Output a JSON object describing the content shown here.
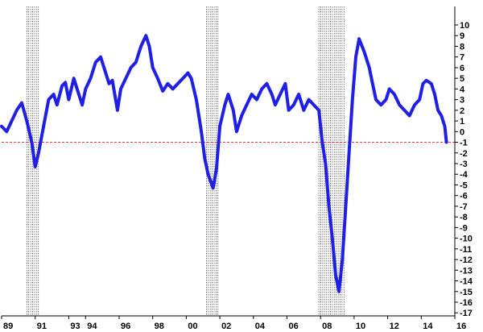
{
  "chart_data": {
    "type": "line",
    "title": "",
    "xlabel": "",
    "ylabel": "",
    "xlim": [
      1989.0,
      2016.0
    ],
    "ylim": [
      -17,
      11
    ],
    "x_ticks": [
      {
        "x": 1989.0,
        "label": "89"
      },
      {
        "x": 1991.0,
        "label": "91"
      },
      {
        "x": 1993.0,
        "label": "93"
      },
      {
        "x": 1994.0,
        "label": "94"
      },
      {
        "x": 1996.0,
        "label": "96"
      },
      {
        "x": 1998.0,
        "label": "98"
      },
      {
        "x": 2000.0,
        "label": "00"
      },
      {
        "x": 2002.0,
        "label": "02"
      },
      {
        "x": 2004.0,
        "label": "04"
      },
      {
        "x": 2006.0,
        "label": "06"
      },
      {
        "x": 2008.0,
        "label": "08"
      },
      {
        "x": 2010.0,
        "label": "10"
      },
      {
        "x": 2012.0,
        "label": "12"
      },
      {
        "x": 2014.0,
        "label": "14"
      },
      {
        "x": 2016.0,
        "label": "16"
      }
    ],
    "y_ticks": [
      10,
      9,
      8,
      7,
      6,
      5,
      4,
      3,
      2,
      1,
      0,
      -1,
      -2,
      -3,
      -4,
      -5,
      -6,
      -7,
      -8,
      -9,
      -10,
      -11,
      -12,
      -13,
      -14,
      -15,
      -16,
      -17
    ],
    "reference_line": {
      "y": -1,
      "style": "dashed",
      "color": "#e8383d"
    },
    "recession_bands": [
      {
        "start": 1990.5,
        "end": 1991.2
      },
      {
        "start": 2001.2,
        "end": 2001.9
      },
      {
        "start": 2007.9,
        "end": 2009.5
      }
    ],
    "series": [
      {
        "color": "#1f1fe6",
        "points": [
          [
            1989.0,
            0.5
          ],
          [
            1989.3,
            0.0
          ],
          [
            1989.6,
            1.0
          ],
          [
            1989.9,
            2.0
          ],
          [
            1990.2,
            2.7
          ],
          [
            1990.5,
            1.0
          ],
          [
            1990.8,
            -1.0
          ],
          [
            1991.0,
            -3.3
          ],
          [
            1991.2,
            -2.0
          ],
          [
            1991.5,
            0.5
          ],
          [
            1991.8,
            3.0
          ],
          [
            1992.1,
            3.5
          ],
          [
            1992.3,
            2.5
          ],
          [
            1992.6,
            4.3
          ],
          [
            1992.8,
            4.6
          ],
          [
            1993.0,
            3.0
          ],
          [
            1993.3,
            5.0
          ],
          [
            1993.5,
            4.0
          ],
          [
            1993.8,
            2.5
          ],
          [
            1994.0,
            4.0
          ],
          [
            1994.3,
            5.0
          ],
          [
            1994.6,
            6.5
          ],
          [
            1994.9,
            7.0
          ],
          [
            1995.2,
            5.5
          ],
          [
            1995.4,
            4.5
          ],
          [
            1995.6,
            4.8
          ],
          [
            1995.9,
            2.0
          ],
          [
            1996.1,
            4.0
          ],
          [
            1996.4,
            5.0
          ],
          [
            1996.7,
            6.0
          ],
          [
            1997.0,
            6.5
          ],
          [
            1997.3,
            8.0
          ],
          [
            1997.6,
            9.0
          ],
          [
            1997.8,
            8.0
          ],
          [
            1998.0,
            6.0
          ],
          [
            1998.3,
            5.0
          ],
          [
            1998.6,
            3.8
          ],
          [
            1998.9,
            4.5
          ],
          [
            1999.2,
            4.0
          ],
          [
            1999.5,
            4.5
          ],
          [
            1999.8,
            5.0
          ],
          [
            2000.1,
            5.5
          ],
          [
            2000.3,
            5.0
          ],
          [
            2000.6,
            3.0
          ],
          [
            2000.9,
            0.0
          ],
          [
            2001.1,
            -2.5
          ],
          [
            2001.3,
            -4.0
          ],
          [
            2001.6,
            -5.3
          ],
          [
            2001.8,
            -3.5
          ],
          [
            2002.0,
            0.5
          ],
          [
            2002.3,
            2.5
          ],
          [
            2002.5,
            3.5
          ],
          [
            2002.8,
            2.0
          ],
          [
            2003.0,
            0.0
          ],
          [
            2003.3,
            1.5
          ],
          [
            2003.6,
            2.5
          ],
          [
            2003.9,
            3.5
          ],
          [
            2004.2,
            3.0
          ],
          [
            2004.5,
            4.0
          ],
          [
            2004.8,
            4.5
          ],
          [
            2005.1,
            3.5
          ],
          [
            2005.3,
            2.5
          ],
          [
            2005.6,
            3.5
          ],
          [
            2005.9,
            4.5
          ],
          [
            2006.1,
            2.0
          ],
          [
            2006.4,
            2.5
          ],
          [
            2006.7,
            3.5
          ],
          [
            2007.0,
            2.0
          ],
          [
            2007.3,
            3.0
          ],
          [
            2007.6,
            2.5
          ],
          [
            2007.9,
            2.0
          ],
          [
            2008.1,
            -1.0
          ],
          [
            2008.3,
            -3.0
          ],
          [
            2008.5,
            -7.0
          ],
          [
            2008.7,
            -10.0
          ],
          [
            2008.9,
            -13.5
          ],
          [
            2009.1,
            -15.0
          ],
          [
            2009.3,
            -12.0
          ],
          [
            2009.5,
            -7.0
          ],
          [
            2009.7,
            -2.0
          ],
          [
            2009.9,
            3.0
          ],
          [
            2010.1,
            7.0
          ],
          [
            2010.3,
            8.7
          ],
          [
            2010.6,
            7.5
          ],
          [
            2010.9,
            6.0
          ],
          [
            2011.1,
            4.5
          ],
          [
            2011.3,
            3.0
          ],
          [
            2011.6,
            2.5
          ],
          [
            2011.9,
            3.0
          ],
          [
            2012.1,
            4.0
          ],
          [
            2012.4,
            3.5
          ],
          [
            2012.7,
            2.5
          ],
          [
            2013.0,
            2.0
          ],
          [
            2013.3,
            1.5
          ],
          [
            2013.6,
            2.5
          ],
          [
            2013.9,
            3.0
          ],
          [
            2014.1,
            4.5
          ],
          [
            2014.3,
            4.8
          ],
          [
            2014.6,
            4.5
          ],
          [
            2014.8,
            3.5
          ],
          [
            2015.0,
            2.0
          ],
          [
            2015.2,
            1.5
          ],
          [
            2015.4,
            0.5
          ],
          [
            2015.5,
            -1.0
          ]
        ]
      }
    ]
  }
}
